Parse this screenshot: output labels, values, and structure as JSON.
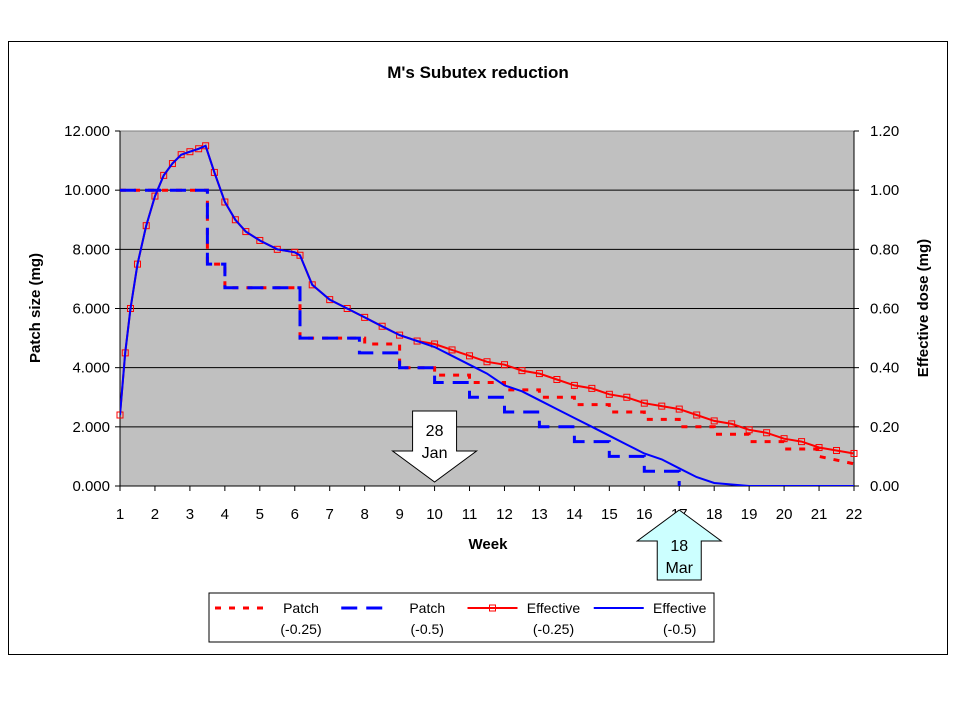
{
  "chart_data": {
    "type": "line",
    "title": "M's Subutex reduction",
    "xlabel": "Week",
    "ylabel_left": "Patch size (mg)",
    "ylabel_right": "Effective dose (mg)",
    "xlim": [
      1,
      22
    ],
    "ylim_left": [
      0,
      12
    ],
    "ylim_right": [
      0,
      1.2
    ],
    "grid": "horizontal",
    "plot_background": "#c0c0c0",
    "legend_position": "bottom",
    "x_ticks": [
      "1",
      "2",
      "3",
      "4",
      "5",
      "6",
      "7",
      "8",
      "9",
      "10",
      "11",
      "12",
      "13",
      "14",
      "15",
      "16",
      "17",
      "18",
      "19",
      "20",
      "21",
      "22"
    ],
    "y_ticks_left": [
      "0.000",
      "2.000",
      "4.000",
      "6.000",
      "8.000",
      "10.000",
      "12.000"
    ],
    "y_ticks_right": [
      "0.00",
      "0.20",
      "0.40",
      "0.60",
      "0.80",
      "1.00",
      "1.20"
    ],
    "series": [
      {
        "name": "Patch (-0.25)",
        "legend_lines": [
          "Patch",
          "(-0.25)"
        ],
        "axis": "left",
        "color": "#ff0000",
        "style": "dotted",
        "points": [
          [
            1,
            10
          ],
          [
            3.5,
            10
          ],
          [
            3.5,
            7.5
          ],
          [
            4,
            7.5
          ],
          [
            4,
            6.7
          ],
          [
            6.15,
            6.7
          ],
          [
            6.15,
            5.0
          ],
          [
            8,
            5.0
          ],
          [
            8,
            4.8
          ],
          [
            9,
            4.8
          ],
          [
            9,
            4.0
          ],
          [
            10,
            4.0
          ],
          [
            10,
            3.75
          ],
          [
            11,
            3.75
          ],
          [
            11,
            3.5
          ],
          [
            12,
            3.5
          ],
          [
            12,
            3.25
          ],
          [
            13,
            3.25
          ],
          [
            13,
            3.0
          ],
          [
            14,
            3.0
          ],
          [
            14,
            2.75
          ],
          [
            15,
            2.75
          ],
          [
            15,
            2.5
          ],
          [
            16,
            2.5
          ],
          [
            16,
            2.25
          ],
          [
            17,
            2.25
          ],
          [
            17,
            2.0
          ],
          [
            18,
            2.0
          ],
          [
            18,
            1.75
          ],
          [
            19,
            1.75
          ],
          [
            19,
            1.5
          ],
          [
            20,
            1.5
          ],
          [
            20,
            1.25
          ],
          [
            21,
            1.25
          ],
          [
            21,
            1.0
          ],
          [
            22,
            0.75
          ]
        ]
      },
      {
        "name": "Patch (-0.5)",
        "legend_lines": [
          "Patch",
          "(-0.5)"
        ],
        "axis": "left",
        "color": "#0000ff",
        "style": "dashed",
        "points": [
          [
            1,
            10
          ],
          [
            3.5,
            10
          ],
          [
            3.5,
            7.5
          ],
          [
            4,
            7.5
          ],
          [
            4,
            6.7
          ],
          [
            6.15,
            6.7
          ],
          [
            6.15,
            5.0
          ],
          [
            7.85,
            5.0
          ],
          [
            7.85,
            4.5
          ],
          [
            9,
            4.5
          ],
          [
            9,
            4.0
          ],
          [
            10,
            4.0
          ],
          [
            10,
            3.5
          ],
          [
            11,
            3.5
          ],
          [
            11,
            3.0
          ],
          [
            12,
            3.0
          ],
          [
            12,
            2.5
          ],
          [
            13,
            2.5
          ],
          [
            13,
            2.0
          ],
          [
            14,
            2.0
          ],
          [
            14,
            1.5
          ],
          [
            15,
            1.5
          ],
          [
            15,
            1.0
          ],
          [
            16,
            1.0
          ],
          [
            16,
            0.5
          ],
          [
            17,
            0.5
          ],
          [
            17,
            0
          ]
        ]
      },
      {
        "name": "Effective (-0.25)",
        "legend_lines": [
          "Effective",
          "(-0.25)"
        ],
        "axis": "right",
        "color": "#ff0000",
        "style": "solid-square-markers",
        "points": [
          [
            1,
            0.24
          ],
          [
            1.15,
            0.45
          ],
          [
            1.3,
            0.6
          ],
          [
            1.5,
            0.75
          ],
          [
            1.75,
            0.88
          ],
          [
            2,
            0.98
          ],
          [
            2.25,
            1.05
          ],
          [
            2.5,
            1.09
          ],
          [
            2.75,
            1.12
          ],
          [
            3,
            1.13
          ],
          [
            3.25,
            1.14
          ],
          [
            3.45,
            1.15
          ],
          [
            3.7,
            1.06
          ],
          [
            4,
            0.96
          ],
          [
            4.3,
            0.9
          ],
          [
            4.6,
            0.86
          ],
          [
            5,
            0.83
          ],
          [
            5.5,
            0.8
          ],
          [
            6,
            0.79
          ],
          [
            6.15,
            0.78
          ],
          [
            6.5,
            0.68
          ],
          [
            7,
            0.63
          ],
          [
            7.5,
            0.6
          ],
          [
            8,
            0.57
          ],
          [
            8.5,
            0.54
          ],
          [
            9,
            0.51
          ],
          [
            9.5,
            0.49
          ],
          [
            10,
            0.48
          ],
          [
            10.5,
            0.46
          ],
          [
            11,
            0.44
          ],
          [
            11.5,
            0.42
          ],
          [
            12,
            0.41
          ],
          [
            12.5,
            0.39
          ],
          [
            13,
            0.38
          ],
          [
            13.5,
            0.36
          ],
          [
            14,
            0.34
          ],
          [
            14.5,
            0.33
          ],
          [
            15,
            0.31
          ],
          [
            15.5,
            0.3
          ],
          [
            16,
            0.28
          ],
          [
            16.5,
            0.27
          ],
          [
            17,
            0.26
          ],
          [
            17.5,
            0.24
          ],
          [
            18,
            0.22
          ],
          [
            18.5,
            0.21
          ],
          [
            19,
            0.19
          ],
          [
            19.5,
            0.18
          ],
          [
            20,
            0.16
          ],
          [
            20.5,
            0.15
          ],
          [
            21,
            0.13
          ],
          [
            21.5,
            0.12
          ],
          [
            22,
            0.11
          ]
        ]
      },
      {
        "name": "Effective (-0.5)",
        "legend_lines": [
          "Effective",
          "(-0.5)"
        ],
        "axis": "right",
        "color": "#0000ff",
        "style": "solid",
        "points": [
          [
            1,
            0.24
          ],
          [
            1.15,
            0.45
          ],
          [
            1.3,
            0.6
          ],
          [
            1.5,
            0.75
          ],
          [
            1.75,
            0.88
          ],
          [
            2,
            0.98
          ],
          [
            2.25,
            1.05
          ],
          [
            2.5,
            1.09
          ],
          [
            2.75,
            1.12
          ],
          [
            3,
            1.13
          ],
          [
            3.25,
            1.14
          ],
          [
            3.45,
            1.15
          ],
          [
            3.7,
            1.06
          ],
          [
            4,
            0.96
          ],
          [
            4.3,
            0.9
          ],
          [
            4.6,
            0.86
          ],
          [
            5,
            0.83
          ],
          [
            5.5,
            0.8
          ],
          [
            6,
            0.79
          ],
          [
            6.15,
            0.78
          ],
          [
            6.5,
            0.68
          ],
          [
            7,
            0.63
          ],
          [
            7.5,
            0.6
          ],
          [
            8,
            0.57
          ],
          [
            8.5,
            0.54
          ],
          [
            9,
            0.51
          ],
          [
            9.5,
            0.49
          ],
          [
            10,
            0.47
          ],
          [
            10.5,
            0.44
          ],
          [
            11,
            0.41
          ],
          [
            11.5,
            0.38
          ],
          [
            12,
            0.34
          ],
          [
            12.5,
            0.32
          ],
          [
            13,
            0.29
          ],
          [
            13.5,
            0.26
          ],
          [
            14,
            0.23
          ],
          [
            14.5,
            0.2
          ],
          [
            15,
            0.17
          ],
          [
            15.5,
            0.14
          ],
          [
            16,
            0.11
          ],
          [
            16.5,
            0.09
          ],
          [
            17,
            0.06
          ],
          [
            17.5,
            0.03
          ],
          [
            18,
            0.01
          ],
          [
            19,
            0.0
          ],
          [
            20,
            0.0
          ],
          [
            21,
            0.0
          ],
          [
            22,
            0.0
          ]
        ]
      }
    ],
    "annotations": [
      {
        "lines": [
          "28",
          "Jan"
        ],
        "arrow": "down",
        "week": 10,
        "fill": "#ffffff"
      },
      {
        "lines": [
          "18",
          "Mar"
        ],
        "arrow": "up",
        "week": 17,
        "fill": "#ccffff"
      }
    ]
  }
}
